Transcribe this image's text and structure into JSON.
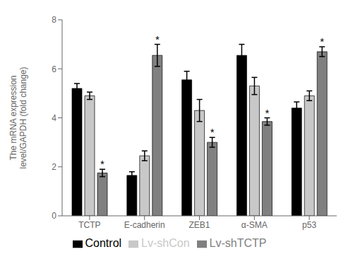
{
  "chart_data": {
    "type": "bar",
    "categories": [
      "TCTP",
      "E-cadherin",
      "ZEB1",
      "α-SMA",
      "p53"
    ],
    "series": [
      {
        "name": "Control",
        "color": "#000000",
        "values": [
          5.2,
          1.65,
          5.55,
          6.55,
          4.4
        ],
        "errors": [
          0.2,
          0.15,
          0.35,
          0.45,
          0.25
        ]
      },
      {
        "name": "Lv-shCon",
        "color": "#c8c8c8",
        "values": [
          4.9,
          2.45,
          4.3,
          5.3,
          4.9
        ],
        "errors": [
          0.15,
          0.2,
          0.45,
          0.35,
          0.2
        ]
      },
      {
        "name": "Lv-shTCTP",
        "color": "#808080",
        "values": [
          1.75,
          6.55,
          3.0,
          3.85,
          6.7
        ],
        "errors": [
          0.15,
          0.45,
          0.2,
          0.15,
          0.2
        ],
        "annotations": [
          "*",
          "*",
          "*",
          "*",
          "*"
        ]
      }
    ],
    "ylabel": "The mRNA expression\nlevel/GAPDH (fold change)",
    "ylim": [
      0,
      8
    ],
    "yticks": [
      0,
      2,
      4,
      6,
      8
    ],
    "legend": "bottom"
  }
}
